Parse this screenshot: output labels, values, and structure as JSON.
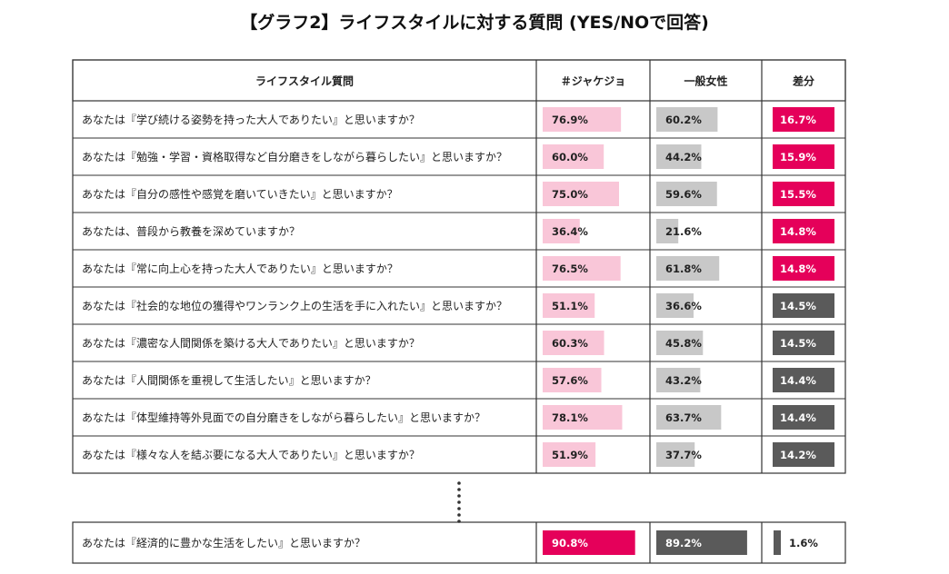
{
  "title": "【グラフ2】ライフスタイルに対する質問 (YES/NOで回答)",
  "colors": {
    "jk_bar": "#f9c6d8",
    "general_bar": "#c8c8c8",
    "diff_high": "#e5005a",
    "diff_low": "#5a5a5a",
    "jk_bar_highlight": "#e5005a",
    "general_bar_highlight": "#5a5a5a",
    "grid": "#333333"
  },
  "chart_data": {
    "type": "table",
    "columns": [
      "ライフスタイル質問",
      "＃ジャケジョ",
      "一般女性",
      "差分"
    ],
    "value_max": 100,
    "rows": [
      {
        "question": "あなたは『学び続ける姿勢を持った大人でありたい』と思いますか？",
        "jk": 76.9,
        "general": 60.2,
        "diff": 16.7,
        "jk_label": "76.9%",
        "general_label": "60.2%",
        "diff_label": "16.7%"
      },
      {
        "question": "あなたは『勉強・学習・資格取得など自分磨きをしながら暮らしたい』と思いますか？",
        "jk": 60.0,
        "general": 44.2,
        "diff": 15.9,
        "jk_label": "60.0%",
        "general_label": "44.2%",
        "diff_label": "15.9%"
      },
      {
        "question": "あなたは『自分の感性や感覚を磨いていきたい』と思いますか？",
        "jk": 75.0,
        "general": 59.6,
        "diff": 15.5,
        "jk_label": "75.0%",
        "general_label": "59.6%",
        "diff_label": "15.5%"
      },
      {
        "question": "あなたは、普段から教養を深めていますか？",
        "jk": 36.4,
        "general": 21.6,
        "diff": 14.8,
        "jk_label": "36.4%",
        "general_label": "21.6%",
        "diff_label": "14.8%"
      },
      {
        "question": "あなたは『常に向上心を持った大人でありたい』と思いますか？",
        "jk": 76.5,
        "general": 61.8,
        "diff": 14.8,
        "jk_label": "76.5%",
        "general_label": "61.8%",
        "diff_label": "14.8%"
      },
      {
        "question": "あなたは『社会的な地位の獲得やワンランク上の生活を手に入れたい』と思いますか？",
        "jk": 51.1,
        "general": 36.6,
        "diff": 14.5,
        "jk_label": "51.1%",
        "general_label": "36.6%",
        "diff_label": "14.5%"
      },
      {
        "question": "あなたは『濃密な人間関係を築ける大人でありたい』と思いますか？",
        "jk": 60.3,
        "general": 45.8,
        "diff": 14.5,
        "jk_label": "60.3%",
        "general_label": "45.8%",
        "diff_label": "14.5%"
      },
      {
        "question": "あなたは『人間関係を重視して生活したい』と思いますか？",
        "jk": 57.6,
        "general": 43.2,
        "diff": 14.4,
        "jk_label": "57.6%",
        "general_label": "43.2%",
        "diff_label": "14.4%"
      },
      {
        "question": "あなたは『体型維持等外見面での自分磨きをしながら暮らしたい』と思いますか？",
        "jk": 78.1,
        "general": 63.7,
        "diff": 14.4,
        "jk_label": "78.1%",
        "general_label": "63.7%",
        "diff_label": "14.4%"
      },
      {
        "question": "あなたは『様々な人を結ぶ要になる大人でありたい』と思いますか？",
        "jk": 51.9,
        "general": 37.7,
        "diff": 14.2,
        "jk_label": "51.9%",
        "general_label": "37.7%",
        "diff_label": "14.2%"
      }
    ],
    "highlight_rows": 5,
    "separate_row": {
      "question": "あなたは『経済的に豊かな生活をしたい』と思いますか？",
      "jk": 90.8,
      "general": 89.2,
      "diff": 1.6,
      "jk_label": "90.8%",
      "general_label": "89.2%",
      "diff_label": "1.6%"
    }
  }
}
